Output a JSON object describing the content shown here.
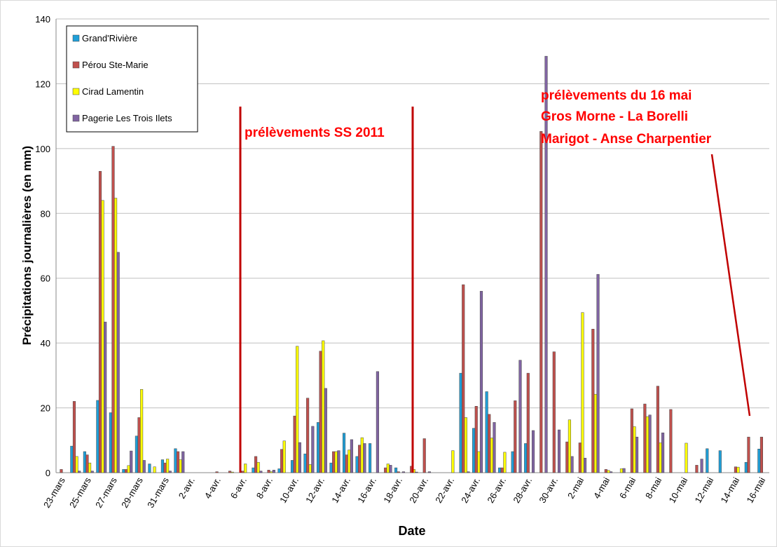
{
  "chart_data": {
    "type": "bar",
    "xlabel": "Date",
    "ylabel": "Précipitations journalières (en mm)",
    "ylim": [
      0,
      140
    ],
    "yticks": [
      0,
      20,
      40,
      60,
      80,
      100,
      120,
      140
    ],
    "grid": true,
    "legend": "upper left",
    "annotations": [
      "prélèvements SS 2011",
      "prélèvements du 16 mai",
      "Gros Morne - La Borelli",
      "Marigot - Anse Charpentier"
    ],
    "categories": [
      "23-mars",
      null,
      "25-mars",
      null,
      "27-mars",
      null,
      "29-mars",
      null,
      "31-mars",
      null,
      "2-avr.",
      null,
      "4-avr.",
      null,
      "6-avr.",
      null,
      "8-avr.",
      null,
      "10-avr.",
      null,
      "12-avr.",
      null,
      "14-avr.",
      null,
      "16-avr.",
      null,
      "18-avr.",
      null,
      "20-avr.",
      null,
      "22-avr.",
      null,
      "24-avr.",
      null,
      "26-avr.",
      null,
      "28-avr.",
      null,
      "30-avr.",
      null,
      "2-mai",
      null,
      "4-mai",
      null,
      "6-mai",
      null,
      "8-mai",
      null,
      "10-mai",
      null,
      "12-mai",
      null,
      "14-mai",
      null,
      "16-mai"
    ],
    "series": [
      {
        "name": "Grand'Rivière",
        "color": "#1f9fd8",
        "values": [
          0,
          8.2,
          6.5,
          22.3,
          18.5,
          1,
          11.3,
          2.7,
          4,
          7.4,
          0,
          0,
          0,
          0,
          0,
          1.5,
          0,
          1.2,
          3.8,
          5.8,
          15.5,
          3,
          12.2,
          5,
          9,
          0,
          1.5,
          0,
          0,
          0,
          0,
          30.7,
          13.7,
          25,
          1.5,
          6.5,
          9,
          0,
          0,
          0,
          0,
          0,
          0,
          0,
          0,
          0,
          0,
          0,
          0,
          0,
          7.4,
          6.8,
          0,
          3.2,
          7.3
        ]
      },
      {
        "name": "Pérou Ste-Marie",
        "color": "#c0504d",
        "values": [
          1,
          22,
          5.5,
          93,
          100.7,
          1,
          17,
          0,
          3,
          6.5,
          0,
          0,
          0.3,
          0.5,
          0.5,
          5,
          0.8,
          7.2,
          17.5,
          23,
          37.5,
          6.5,
          5.5,
          8.5,
          0,
          1.5,
          0.3,
          2,
          10.5,
          0,
          0,
          58,
          20.5,
          18,
          1.5,
          22.2,
          30.7,
          105.3,
          37.3,
          9.5,
          9.2,
          44.3,
          1,
          0,
          19.7,
          21.2,
          26.7,
          19.5,
          0,
          2.3,
          0,
          0,
          1.8,
          11,
          11
        ]
      },
      {
        "name": "Cirad Lamentin",
        "color": "#ffff00",
        "values": [
          0,
          5,
          3,
          84,
          84.7,
          2.2,
          25.7,
          1.8,
          4.2,
          4,
          0,
          0,
          0,
          0.2,
          2.7,
          3.2,
          0.3,
          9.8,
          39,
          2.5,
          40.7,
          6.5,
          7,
          10.8,
          0,
          2.7,
          0,
          1,
          0,
          0,
          6.8,
          17,
          6.5,
          10.7,
          6.3,
          0,
          0,
          0,
          0,
          16.3,
          49.4,
          24.2,
          0.7,
          1.2,
          14.2,
          17.3,
          9.2,
          0,
          9.1,
          0,
          0,
          0,
          1.7,
          0,
          0
        ]
      },
      {
        "name": "Pagerie Les Trois Ilets",
        "color": "#8064a2",
        "values": [
          0,
          0.5,
          0.5,
          46.5,
          68,
          6.7,
          3.8,
          0,
          0.5,
          6.5,
          0,
          0,
          0,
          0,
          0,
          0.5,
          0.8,
          0,
          9.3,
          14.3,
          26,
          6.8,
          10.2,
          9,
          31.2,
          2.3,
          0.3,
          0.2,
          0.3,
          0,
          0,
          0.3,
          56,
          15.5,
          0,
          34.7,
          13,
          128.5,
          13.2,
          5,
          4.5,
          61.2,
          0.3,
          1.3,
          11,
          17.8,
          12.3,
          0,
          0,
          4.2,
          0,
          0,
          0,
          0,
          0
        ]
      }
    ]
  }
}
